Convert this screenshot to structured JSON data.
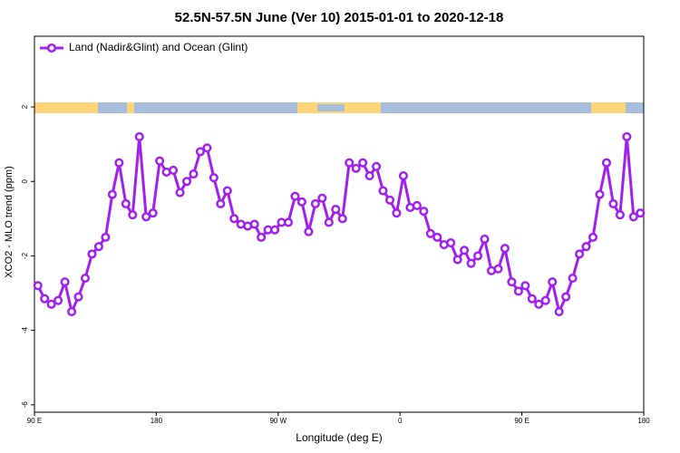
{
  "chart_data": {
    "type": "line",
    "title": "52.5N-57.5N June (Ver 10)   2015-01-01 to 2020-12-18",
    "x_label": "Longitude (deg E)",
    "y_label": "XCO2 - MLO trend (ppm)",
    "x": [
      92.5,
      97.5,
      102.5,
      107.5,
      112.5,
      117.5,
      122.5,
      127.5,
      132.5,
      137.5,
      142.5,
      147.5,
      152.5,
      157.5,
      162.5,
      167.5,
      172.5,
      177.5,
      182.5,
      187.5,
      192.5,
      197.5,
      202.5,
      207.5,
      212.5,
      217.5,
      222.5,
      227.5,
      232.5,
      237.5,
      242.5,
      247.5,
      252.5,
      257.5,
      262.5,
      267.5,
      272.5,
      277.5,
      282.5,
      287.5,
      292.5,
      297.5,
      302.5,
      307.5,
      312.5,
      317.5,
      322.5,
      327.5,
      332.5,
      337.5,
      342.5,
      347.5,
      352.5,
      357.5,
      362.5,
      367.5,
      372.5,
      377.5,
      382.5,
      387.5,
      392.5,
      397.5,
      402.5,
      407.5,
      412.5,
      417.5,
      422.5,
      427.5,
      432.5,
      437.5,
      442.5,
      447.5,
      452.5,
      457.5,
      462.5,
      467.5,
      472.5,
      477.5,
      482.5,
      487.5,
      492.5,
      497.5,
      502.5,
      507.5,
      512.5,
      517.5,
      522.5,
      527.5,
      532.5,
      537.5
    ],
    "series": [
      {
        "name": "Land (Nadir&Glint) and Ocean (Glint)",
        "color": "#a020f0",
        "values": [
          -2.8,
          -3.15,
          -3.3,
          -3.2,
          -2.7,
          -3.5,
          -3.1,
          -2.6,
          -1.95,
          -1.75,
          -1.5,
          -0.35,
          0.5,
          -0.6,
          -0.9,
          1.2,
          -0.95,
          -0.85,
          0.55,
          0.25,
          0.3,
          -0.3,
          0,
          0.2,
          0.8,
          0.9,
          0.1,
          -0.6,
          -0.25,
          -1.0,
          -1.15,
          -1.2,
          -1.15,
          -1.5,
          -1.3,
          -1.3,
          -1.1,
          -1.1,
          -0.4,
          -0.55,
          -1.35,
          -0.6,
          -0.45,
          -1.1,
          -0.75,
          -1.0,
          0.5,
          0.35,
          0.5,
          0.15,
          0.4,
          -0.25,
          -0.5,
          -0.85,
          0.15,
          -0.7,
          -0.65,
          -0.8,
          -1.4,
          -1.5,
          -1.7,
          -1.65,
          -2.1,
          -1.85,
          -2.2,
          -2.0,
          -1.55,
          -2.4,
          -2.35,
          -1.8,
          -2.7,
          -2.95,
          -2.8,
          -3.15,
          -3.3,
          -3.2,
          -2.7,
          -3.5,
          -3.1,
          -2.6,
          -1.95,
          -1.75,
          -1.5,
          -0.35,
          0.5,
          -0.6,
          -0.9,
          1.2,
          -0.95,
          -0.85
        ]
      }
    ],
    "xlim": [
      90,
      540
    ],
    "xticks": [
      {
        "value": 90,
        "label": "90 E"
      },
      180,
      {
        "value": 270,
        "label": "90 W"
      },
      {
        "value": 360,
        "label": "0"
      },
      {
        "value": 450,
        "label": "90 E"
      },
      {
        "value": 540,
        "label": "180"
      }
    ],
    "ylim": [
      -6.2,
      3.9
    ],
    "yticks": [
      2,
      0,
      -2,
      -4,
      -6
    ],
    "legend": "top-left"
  }
}
